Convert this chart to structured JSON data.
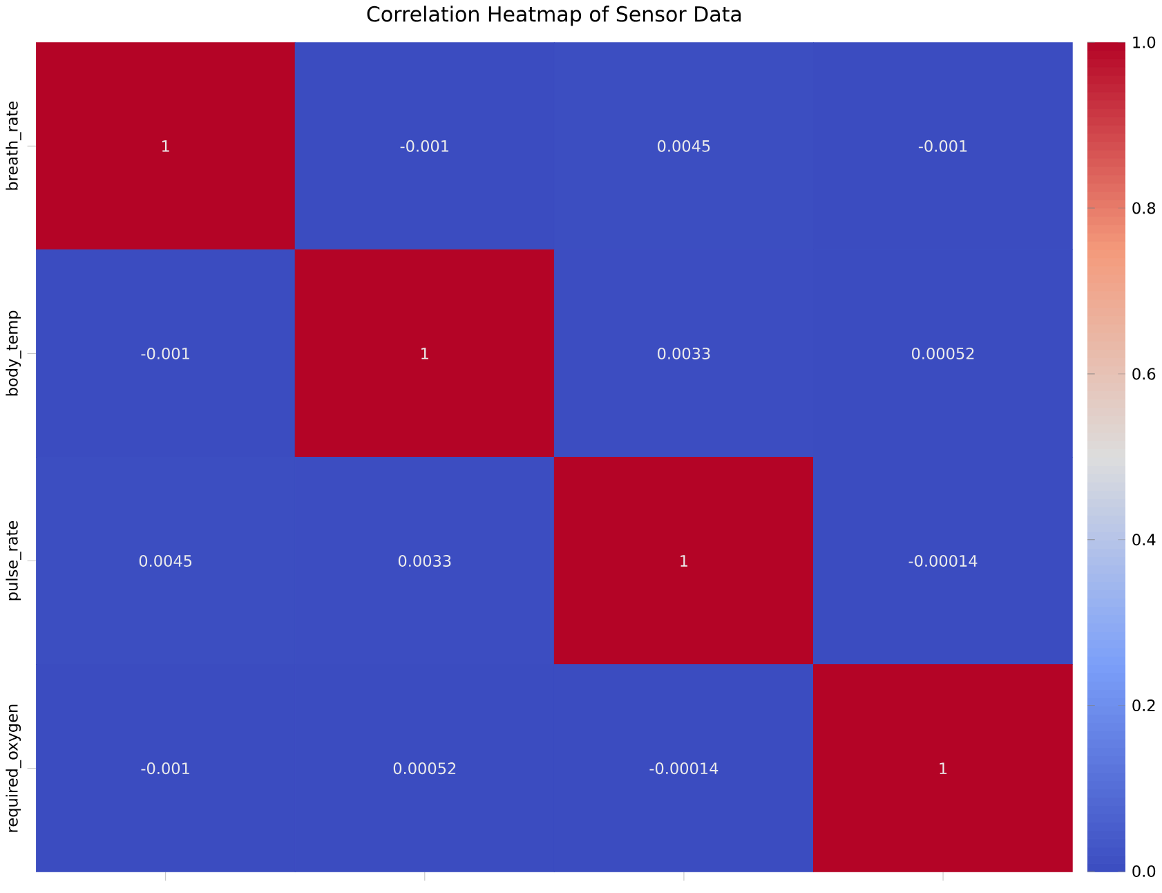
{
  "chart_data": {
    "type": "heatmap",
    "title": "Correlation Heatmap of Sensor Data",
    "categories": [
      null,
      null,
      null,
      null
    ],
    "y_categories": [
      "breath_rate",
      "body_temp",
      "pulse_rate",
      "required_oxygen"
    ],
    "cells": [
      [
        1,
        -0.001,
        0.0045,
        -0.001
      ],
      [
        -0.001,
        1,
        0.0033,
        0.00052
      ],
      [
        0.0045,
        0.0033,
        1,
        -0.00014
      ],
      [
        -0.001,
        0.00052,
        -0.00014,
        1
      ]
    ],
    "data_labels": true,
    "clim": [
      -0.001,
      1
    ],
    "cticks": [
      {
        "value": 0,
        "label": "0.0"
      },
      {
        "value": 0.2,
        "label": "0.2"
      },
      {
        "value": 0.4,
        "label": "0.4"
      },
      {
        "value": 0.6,
        "label": "0.6"
      },
      {
        "value": 0.8,
        "label": "0.8"
      },
      {
        "value": 1,
        "label": "1.0"
      }
    ]
  }
}
